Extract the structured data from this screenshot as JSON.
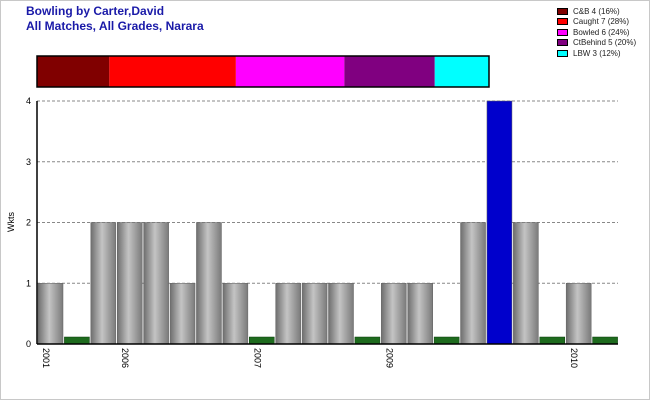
{
  "chart_data": {
    "type": "bar",
    "title": "Bowling by Carter,David",
    "subtitle": "All Matches, All Grades, Narara",
    "ylabel": "Wkts",
    "ylim": [
      0,
      4
    ],
    "yticks": [
      "0",
      "1",
      "2",
      "3",
      "4"
    ],
    "grid": true,
    "legend_position": "top-right",
    "values": [
      1,
      0,
      2,
      2,
      2,
      1,
      2,
      1,
      0,
      1,
      1,
      1,
      0,
      1,
      1,
      0,
      2,
      4,
      2,
      0,
      1,
      0
    ],
    "highlight_index": 17,
    "colors": {
      "bar": "#a0a0a0",
      "zero_marker": "#1e6b1e",
      "highlight": "#0000cc",
      "grid": "#888888"
    },
    "year_labels": [
      {
        "index": 0,
        "label": "2001"
      },
      {
        "index": 3,
        "label": "2006"
      },
      {
        "index": 8,
        "label": "2007"
      },
      {
        "index": 13,
        "label": "2009"
      },
      {
        "index": 20,
        "label": "2010"
      }
    ],
    "dismissals": [
      {
        "label": "C&B 4 (16%)",
        "count": 4,
        "color": "#800000"
      },
      {
        "label": "Caught 7 (28%)",
        "count": 7,
        "color": "#ff0000"
      },
      {
        "label": "Bowled 6 (24%)",
        "count": 6,
        "color": "#ff00ff"
      },
      {
        "label": "CtBehind 5 (20%)",
        "count": 5,
        "color": "#800080"
      },
      {
        "label": "LBW 3 (12%)",
        "count": 3,
        "color": "#00ffff"
      }
    ]
  }
}
